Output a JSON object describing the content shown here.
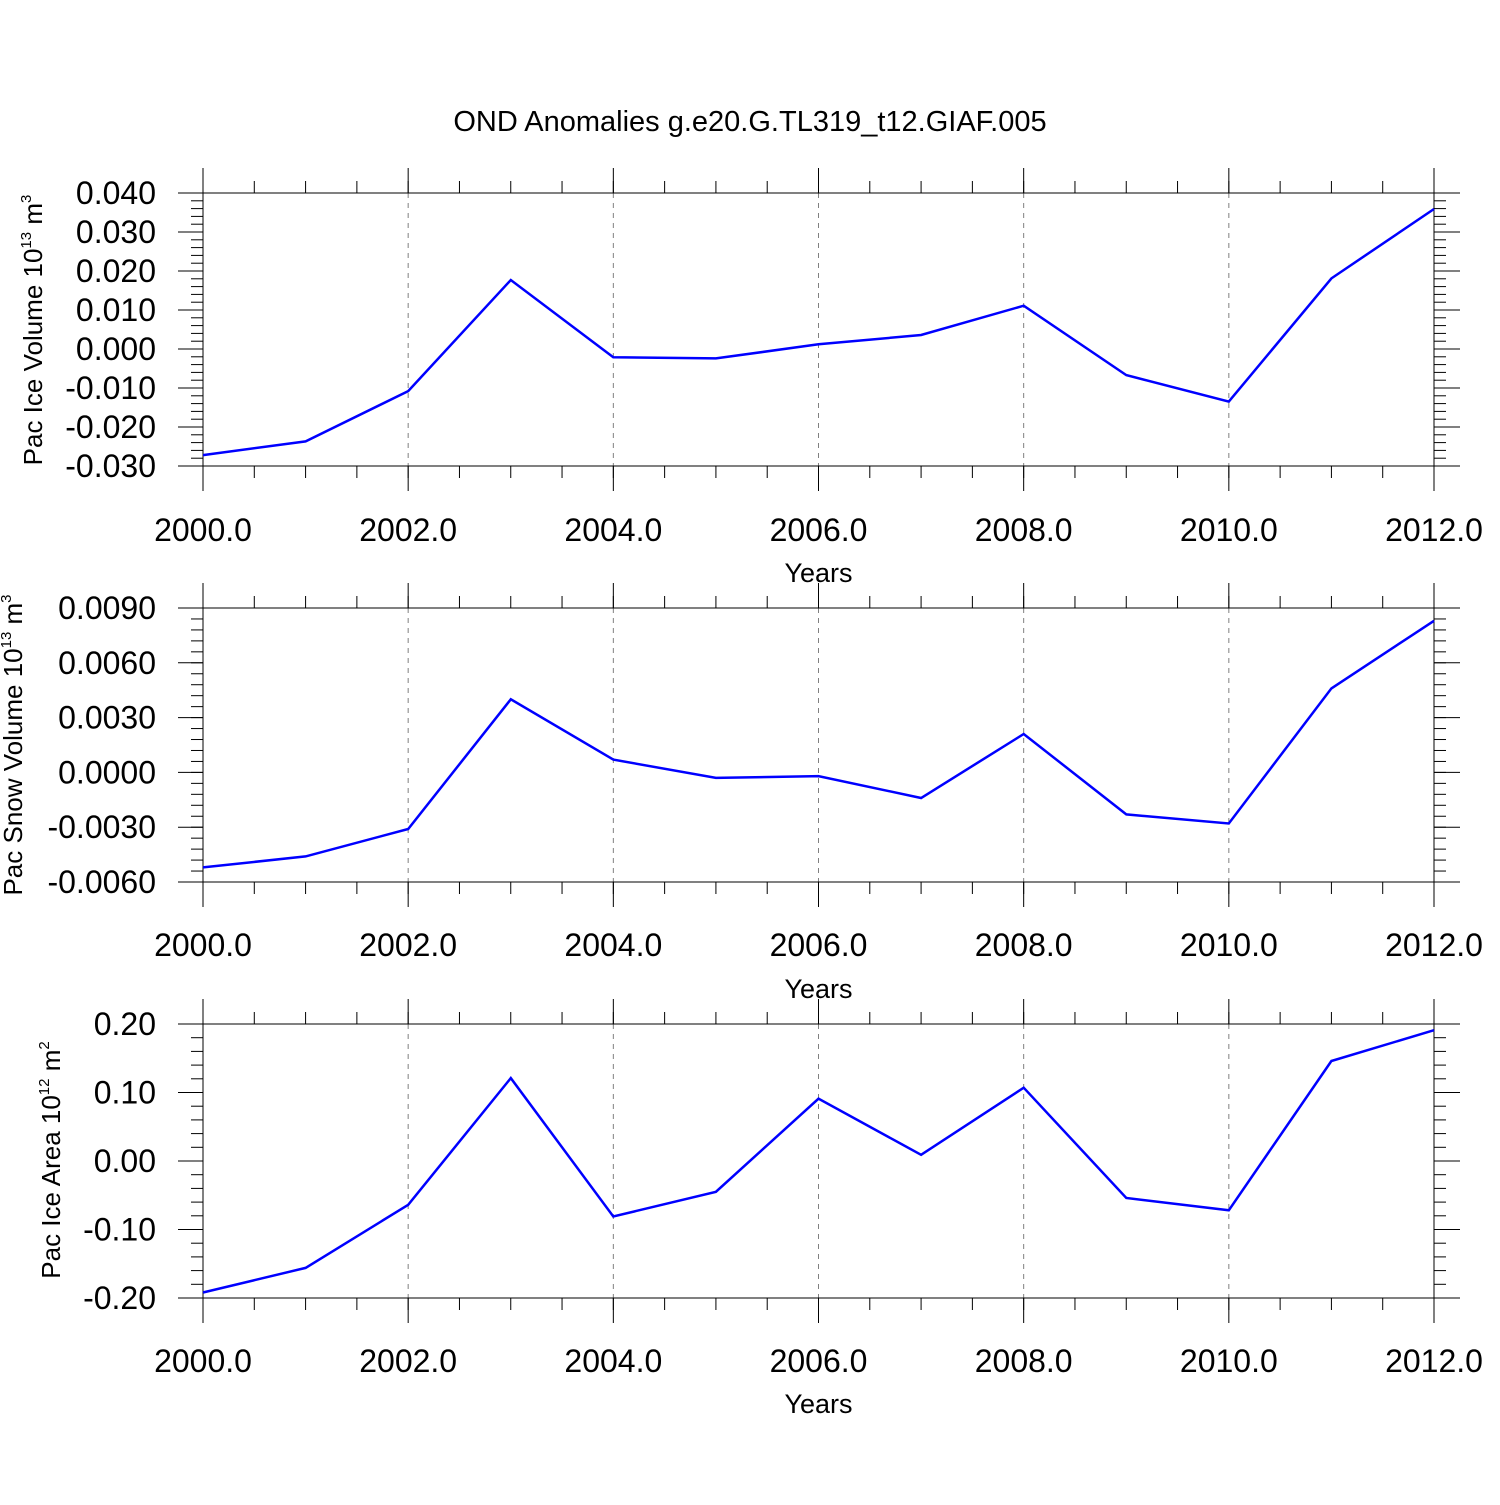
{
  "figure": {
    "title": "OND Anomalies g.e20.G.TL319_t12.GIAF.005"
  },
  "colors": {
    "line": "#0000ff",
    "axis": "#000000",
    "grid": "#808080",
    "background": "#ffffff"
  },
  "chart_data": [
    {
      "type": "line",
      "xlabel": "Years",
      "ylabel": "Pac Ice Volume 10",
      "ylabel_exp": "13",
      "ylabel_unit": "m",
      "ylabel_unit_exp": "3",
      "xlim": [
        2000,
        2012
      ],
      "ylim": [
        -0.03,
        0.04
      ],
      "x_ticks": [
        2000,
        2002,
        2004,
        2006,
        2008,
        2010,
        2012
      ],
      "x_tick_labels": [
        "2000.0",
        "2002.0",
        "2004.0",
        "2006.0",
        "2008.0",
        "2010.0",
        "2012.0"
      ],
      "y_ticks": [
        -0.03,
        -0.02,
        -0.01,
        0.0,
        0.01,
        0.02,
        0.03,
        0.04
      ],
      "y_tick_labels": [
        "-0.030",
        "-0.020",
        "-0.010",
        "0.000",
        "0.010",
        "0.020",
        "0.030",
        "0.040"
      ],
      "y_minor_step": 0.002,
      "x_minor_step": 0.5,
      "grid": "vertical dashed at major x ticks",
      "series": [
        {
          "x": [
            2000,
            2001,
            2002,
            2003,
            2004,
            2005,
            2006,
            2007,
            2008,
            2009,
            2010,
            2011,
            2012
          ],
          "values": [
            -0.0272,
            -0.0237,
            -0.0108,
            0.0177,
            -0.0021,
            -0.0024,
            0.0012,
            0.0036,
            0.0111,
            -0.0067,
            -0.0135,
            0.0181,
            0.0359
          ]
        }
      ]
    },
    {
      "type": "line",
      "xlabel": "Years",
      "ylabel": "Pac Snow Volume 10",
      "ylabel_exp": "13",
      "ylabel_unit": "m",
      "ylabel_unit_exp": "3",
      "xlim": [
        2000,
        2012
      ],
      "ylim": [
        -0.006,
        0.009
      ],
      "x_ticks": [
        2000,
        2002,
        2004,
        2006,
        2008,
        2010,
        2012
      ],
      "x_tick_labels": [
        "2000.0",
        "2002.0",
        "2004.0",
        "2006.0",
        "2008.0",
        "2010.0",
        "2012.0"
      ],
      "y_ticks": [
        -0.006,
        -0.003,
        0.0,
        0.003,
        0.006,
        0.009
      ],
      "y_tick_labels": [
        "-0.0060",
        "-0.0030",
        "0.0000",
        "0.0030",
        "0.0060",
        "0.0090"
      ],
      "y_minor_step": 0.0006,
      "x_minor_step": 0.5,
      "grid": "vertical dashed at major x ticks",
      "series": [
        {
          "x": [
            2000,
            2001,
            2002,
            2003,
            2004,
            2005,
            2006,
            2007,
            2008,
            2009,
            2010,
            2011,
            2012
          ],
          "values": [
            -0.0052,
            -0.0046,
            -0.0031,
            0.004,
            0.0007,
            -0.0003,
            -0.0002,
            -0.0014,
            0.0021,
            -0.0023,
            -0.0028,
            0.0046,
            0.0083
          ]
        }
      ]
    },
    {
      "type": "line",
      "xlabel": "Years",
      "ylabel": "Pac Ice Area 10",
      "ylabel_exp": "12",
      "ylabel_unit": "m",
      "ylabel_unit_exp": "2",
      "xlim": [
        2000,
        2012
      ],
      "ylim": [
        -0.2,
        0.2
      ],
      "x_ticks": [
        2000,
        2002,
        2004,
        2006,
        2008,
        2010,
        2012
      ],
      "x_tick_labels": [
        "2000.0",
        "2002.0",
        "2004.0",
        "2006.0",
        "2008.0",
        "2010.0",
        "2012.0"
      ],
      "y_ticks": [
        -0.2,
        -0.1,
        0.0,
        0.1,
        0.2
      ],
      "y_tick_labels": [
        "-0.20",
        "-0.10",
        "0.00",
        "0.10",
        "0.20"
      ],
      "y_minor_step": 0.02,
      "x_minor_step": 0.5,
      "grid": "vertical dashed at major x ticks",
      "series": [
        {
          "x": [
            2000,
            2001,
            2002,
            2003,
            2004,
            2005,
            2006,
            2007,
            2008,
            2009,
            2010,
            2011,
            2012
          ],
          "values": [
            -0.192,
            -0.156,
            -0.064,
            0.121,
            -0.081,
            -0.045,
            0.091,
            0.009,
            0.107,
            -0.054,
            -0.072,
            0.146,
            0.191
          ]
        }
      ]
    }
  ]
}
